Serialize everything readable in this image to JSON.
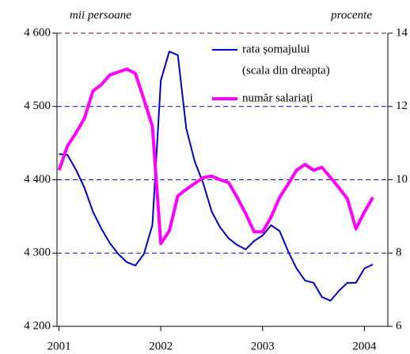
{
  "chart_data": {
    "type": "line",
    "annotations": [
      "mii persoane",
      "procente"
    ],
    "legend_note": "(scala din dreapta)",
    "x": [
      2001,
      2001.083,
      2001.167,
      2001.25,
      2001.333,
      2001.417,
      2001.5,
      2001.583,
      2001.667,
      2001.75,
      2001.833,
      2001.917,
      2002,
      2002.083,
      2002.167,
      2002.25,
      2002.333,
      2002.417,
      2002.5,
      2002.583,
      2002.667,
      2002.75,
      2002.833,
      2002.917,
      2003,
      2003.083,
      2003.167,
      2003.25,
      2003.333,
      2003.417,
      2003.5,
      2003.583,
      2003.667,
      2003.75,
      2003.833,
      2003.917,
      2004,
      2004.083
    ],
    "xlim": [
      2000.98,
      2004.23
    ],
    "xticks": [
      2001,
      2002,
      2003,
      2004
    ],
    "ylim": [
      4200,
      4600
    ],
    "yticks": [
      {
        "value": 4200,
        "label": "4 200"
      },
      {
        "value": 4300,
        "label": "4 300"
      },
      {
        "value": 4400,
        "label": "4 400"
      },
      {
        "value": 4500,
        "label": "4 500"
      },
      {
        "value": 4600,
        "label": "4 600"
      }
    ],
    "y2lim": [
      6,
      14
    ],
    "y2ticks": [
      6,
      8,
      10,
      12,
      14
    ],
    "grid": true,
    "series": [
      {
        "name": "rata șomajului",
        "color": "#0000cc",
        "axis": "y2",
        "values": [
          10.7,
          10.68,
          10.27,
          9.78,
          9.13,
          8.66,
          8.27,
          7.97,
          7.75,
          7.66,
          7.97,
          8.76,
          12.71,
          13.5,
          13.4,
          11.4,
          10.5,
          9.9,
          9.13,
          8.7,
          8.4,
          8.22,
          8.1,
          8.33,
          8.48,
          8.76,
          8.6,
          8.05,
          7.58,
          7.25,
          7.19,
          6.8,
          6.7,
          6.97,
          7.19,
          7.19,
          7.58,
          7.69
        ]
      },
      {
        "name": "număr salariați",
        "color": "#ff00ff",
        "values": [
          4413,
          4446,
          4464,
          4484,
          4521,
          4530,
          4543,
          4547,
          4551,
          4545,
          4510,
          4473,
          4313,
          4330,
          4378,
          4387,
          4395,
          4403,
          4405,
          4400,
          4396,
          4376,
          4354,
          4329,
          4329,
          4349,
          4376,
          4394,
          4413,
          4421,
          4413,
          4417,
          4403,
          4389,
          4374,
          4333,
          4356,
          4376
        ]
      }
    ]
  }
}
